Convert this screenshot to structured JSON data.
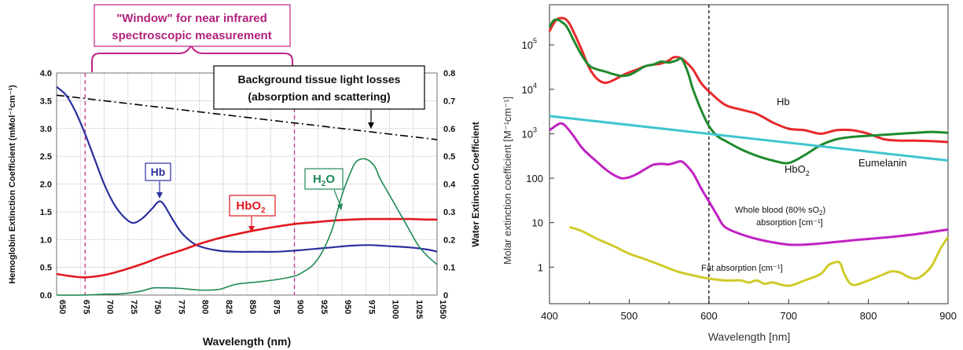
{
  "chart_data": [
    {
      "type": "line",
      "xlabel": "Wavelength (nm)",
      "ylabel_left": "Hemoglobin Extinction Coefficient (mMol⁻¹cm⁻¹)",
      "ylabel_right": "Water Extinction Coefficient",
      "xlim": [
        650,
        1050
      ],
      "ylim_left": [
        0,
        4.0
      ],
      "ylim_right": [
        0,
        0.8
      ],
      "x_ticks": [
        "650",
        "675",
        "700",
        "725",
        "750",
        "775",
        "800",
        "825",
        "850",
        "875",
        "900",
        "925",
        "950",
        "975",
        "1000",
        "1025",
        "1050"
      ],
      "y_ticks_left": [
        "0.0",
        "0.5",
        "1.0",
        "1.5",
        "2.0",
        "2.5",
        "3.0",
        "3.5",
        "4.0"
      ],
      "y_ticks_right": [
        "0",
        "0.1",
        "0.2",
        "0.3",
        "0.4",
        "0.5",
        "0.6",
        "0.7",
        "0.8"
      ],
      "window_range": [
        680,
        900
      ],
      "annotations": {
        "window_line1": "\"Window\" for near infrared",
        "window_line2": "spectroscopic measurement",
        "background_line1": "Background tissue light losses",
        "background_line2": "(absorption and scattering)",
        "hb": "Hb",
        "hbo2": "HbO",
        "hbo2_sub": "2",
        "h2o": "H",
        "h2o_sub": "2",
        "h2o_tail": "O"
      },
      "series": [
        {
          "key": "hb",
          "axis": "left",
          "color": "#2b2f9e",
          "x": [
            650,
            660,
            670,
            680,
            690,
            700,
            710,
            720,
            730,
            740,
            750,
            757,
            762,
            770,
            780,
            790,
            800,
            820,
            840,
            860,
            880,
            900,
            920,
            940,
            960,
            980,
            1000,
            1020,
            1040,
            1050
          ],
          "y": [
            3.75,
            3.6,
            3.3,
            2.9,
            2.45,
            2.0,
            1.65,
            1.42,
            1.3,
            1.38,
            1.55,
            1.68,
            1.65,
            1.42,
            1.15,
            0.98,
            0.88,
            0.8,
            0.78,
            0.78,
            0.78,
            0.8,
            0.83,
            0.86,
            0.89,
            0.9,
            0.88,
            0.86,
            0.82,
            0.78
          ]
        },
        {
          "key": "hbo2",
          "axis": "left",
          "color": "#e0191f",
          "x": [
            650,
            665,
            680,
            700,
            720,
            740,
            760,
            780,
            800,
            820,
            840,
            860,
            880,
            900,
            920,
            940,
            960,
            980,
            1000,
            1020,
            1040,
            1050
          ],
          "y": [
            0.38,
            0.34,
            0.32,
            0.36,
            0.45,
            0.56,
            0.69,
            0.8,
            0.92,
            1.02,
            1.1,
            1.17,
            1.23,
            1.28,
            1.31,
            1.34,
            1.36,
            1.37,
            1.37,
            1.37,
            1.36,
            1.36
          ]
        },
        {
          "key": "h2o",
          "axis": "right",
          "color": "#1e8a55",
          "x": [
            650,
            680,
            700,
            720,
            740,
            750,
            760,
            780,
            800,
            820,
            830,
            840,
            860,
            880,
            900,
            910,
            920,
            930,
            940,
            950,
            960,
            965,
            970,
            975,
            980,
            985,
            990,
            1000,
            1010,
            1020,
            1030,
            1040,
            1050
          ],
          "y": [
            0.0,
            0.0,
            0.003,
            0.005,
            0.015,
            0.025,
            0.026,
            0.024,
            0.018,
            0.02,
            0.03,
            0.04,
            0.047,
            0.055,
            0.068,
            0.085,
            0.11,
            0.16,
            0.24,
            0.36,
            0.45,
            0.48,
            0.49,
            0.49,
            0.48,
            0.46,
            0.42,
            0.36,
            0.3,
            0.24,
            0.18,
            0.14,
            0.11
          ]
        },
        {
          "key": "background",
          "axis": "right",
          "color": "#000000",
          "dash": "dashdot",
          "x": [
            650,
            1050
          ],
          "y": [
            0.72,
            0.56
          ]
        }
      ]
    },
    {
      "type": "line",
      "yscale": "log",
      "xlabel": "Wavelength [nm]",
      "ylabel": "Molar extinction coefficient  [M⁻¹cm⁻¹]",
      "xlim": [
        400,
        900
      ],
      "ylim": [
        0.15,
        800000
      ],
      "x_ticks": [
        "400",
        "500",
        "600",
        "700",
        "800",
        "900"
      ],
      "y_ticks": [
        {
          "value": 1,
          "label": "1"
        },
        {
          "value": 10,
          "label": "10"
        },
        {
          "value": 100,
          "label": "100"
        },
        {
          "value": 1000,
          "label": "10",
          "sup": "3"
        },
        {
          "value": 10000,
          "label": "10",
          "sup": "4"
        },
        {
          "value": 100000,
          "label": "10",
          "sup": "5"
        }
      ],
      "vline_x": 600,
      "annotations": {
        "hb": "Hb",
        "hbo2": "HbO",
        "hbo2_sub": "2",
        "eumelanin": "Eumelanin",
        "whole_blood_1": "Whole blood (80% sO",
        "whole_blood_1_sub": "2",
        "whole_blood_1_tail": ")",
        "whole_blood_2": "absorption [cm⁻¹]",
        "fat": "Fat absorption [cm⁻¹]"
      },
      "series": [
        {
          "key": "hb",
          "color": "#e8282a",
          "x": [
            400,
            405,
            410,
            415,
            420,
            425,
            430,
            440,
            450,
            460,
            470,
            480,
            490,
            500,
            510,
            520,
            530,
            540,
            550,
            555,
            560,
            565,
            570,
            580,
            590,
            600,
            620,
            640,
            660,
            680,
            700,
            720,
            740,
            760,
            780,
            800,
            820,
            840,
            860,
            880,
            900
          ],
          "y": [
            200000,
            300000,
            380000,
            400000,
            380000,
            300000,
            200000,
            80000,
            30000,
            17000,
            14000,
            16000,
            20000,
            24000,
            28000,
            33000,
            36000,
            38000,
            45000,
            52000,
            53000,
            50000,
            43000,
            28000,
            14000,
            9000,
            4500,
            3500,
            2800,
            1800,
            1300,
            1200,
            1000,
            1200,
            1200,
            1000,
            750,
            700,
            700,
            680,
            650
          ]
        },
        {
          "key": "hbo2",
          "color": "#1f8a2e",
          "x": [
            400,
            405,
            410,
            415,
            420,
            425,
            430,
            440,
            450,
            460,
            470,
            480,
            490,
            500,
            510,
            520,
            530,
            540,
            550,
            560,
            565,
            570,
            575,
            580,
            590,
            600,
            610,
            620,
            640,
            660,
            680,
            700,
            720,
            740,
            760,
            780,
            800,
            820,
            840,
            860,
            880,
            900
          ],
          "y": [
            250000,
            350000,
            370000,
            330000,
            280000,
            200000,
            130000,
            60000,
            34000,
            28000,
            25000,
            22000,
            20000,
            21000,
            26000,
            33000,
            36000,
            42000,
            40000,
            45000,
            50000,
            35000,
            20000,
            10000,
            3500,
            1500,
            900,
            700,
            450,
            320,
            250,
            220,
            330,
            550,
            750,
            850,
            900,
            950,
            1000,
            1050,
            1100,
            1050
          ]
        },
        {
          "key": "eumelanin",
          "color": "#3ec6cf",
          "x": [
            400,
            900
          ],
          "y": [
            2500,
            250
          ]
        },
        {
          "key": "whole_blood",
          "color": "#c022c2",
          "x": [
            400,
            410,
            415,
            420,
            430,
            440,
            450,
            460,
            470,
            480,
            490,
            500,
            510,
            520,
            530,
            540,
            550,
            560,
            565,
            570,
            580,
            590,
            600,
            610,
            620,
            640,
            660,
            680,
            700,
            720,
            740,
            760,
            780,
            800,
            820,
            840,
            860,
            880,
            900
          ],
          "y": [
            1200,
            1600,
            1700,
            1500,
            900,
            500,
            330,
            230,
            160,
            120,
            100,
            105,
            125,
            160,
            200,
            210,
            205,
            230,
            240,
            210,
            130,
            60,
            30,
            15,
            8,
            5.5,
            4.3,
            3.6,
            3.2,
            3.2,
            3.4,
            3.7,
            4.0,
            4.3,
            4.6,
            5.0,
            5.5,
            6.2,
            7.0
          ]
        },
        {
          "key": "fat",
          "color": "#cfcb2a",
          "x": [
            425,
            440,
            460,
            480,
            500,
            520,
            540,
            560,
            580,
            600,
            620,
            640,
            650,
            660,
            670,
            680,
            700,
            720,
            740,
            750,
            760,
            765,
            770,
            780,
            800,
            820,
            830,
            840,
            850,
            860,
            870,
            880,
            890,
            900
          ],
          "y": [
            8,
            6.5,
            4.3,
            3,
            2,
            1.5,
            1.1,
            0.8,
            0.65,
            0.55,
            0.5,
            0.5,
            0.45,
            0.5,
            0.42,
            0.45,
            0.38,
            0.5,
            0.7,
            1.1,
            1.3,
            1.2,
            0.7,
            0.4,
            0.5,
            0.7,
            0.8,
            0.75,
            0.6,
            0.55,
            0.7,
            1.1,
            2.5,
            4.8
          ]
        }
      ]
    }
  ]
}
